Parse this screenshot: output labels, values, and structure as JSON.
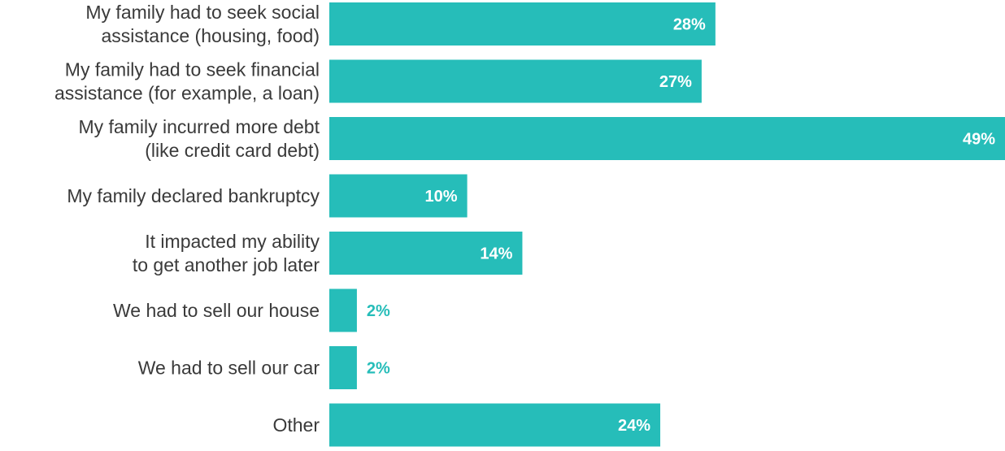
{
  "chart_data": {
    "type": "bar",
    "orientation": "horizontal",
    "title": "",
    "xlabel": "",
    "ylabel": "",
    "categories": [
      [
        "My family had to seek social",
        "assistance (housing, food)"
      ],
      [
        "My family had to seek financial",
        "assistance (for example, a loan)"
      ],
      [
        "My family incurred more debt",
        "(like credit card debt)"
      ],
      [
        "My family declared bankruptcy"
      ],
      [
        "It impacted my ability",
        "to get another job later"
      ],
      [
        "We had to sell our house"
      ],
      [
        "We had to sell our car"
      ],
      [
        "Other"
      ]
    ],
    "values": [
      28,
      27,
      49,
      10,
      14,
      2,
      2,
      24
    ],
    "value_labels": [
      "28%",
      "27%",
      "49%",
      "10%",
      "14%",
      "2%",
      "2%",
      "24%"
    ],
    "xlim": [
      0,
      49
    ],
    "grid": false,
    "legend": "none",
    "colors": {
      "bar": "#26bdb9",
      "label_inside": "#ffffff",
      "label_outside": "#26bdb9",
      "category_text": "#3a3a3a"
    }
  }
}
